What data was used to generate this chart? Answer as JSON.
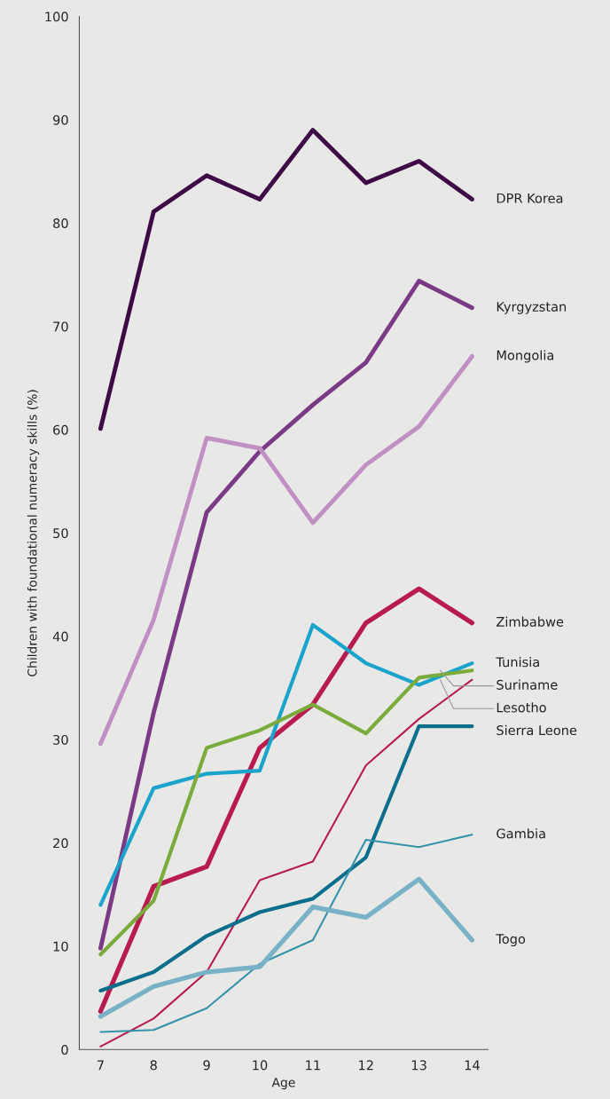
{
  "chart_data": {
    "type": "line",
    "xlabel": "Age",
    "ylabel": "Children with foundational numeracy skills (%)",
    "x": [
      7,
      8,
      9,
      10,
      11,
      12,
      13,
      14
    ],
    "xlim": [
      6.6,
      14.3
    ],
    "xticks": [
      7,
      8,
      9,
      10,
      11,
      12,
      13,
      14
    ],
    "ylim": [
      0,
      100
    ],
    "yticks": [
      0,
      10,
      20,
      30,
      40,
      50,
      60,
      70,
      80,
      90,
      100
    ],
    "grid": false,
    "legend": false,
    "marker": "none",
    "line_style": "solid",
    "series": [
      {
        "name": "DPR Korea",
        "color": "#3d0a45",
        "values": [
          60.1,
          81.1,
          84.6,
          82.3,
          89.0,
          83.9,
          86.0,
          82.3
        ]
      },
      {
        "name": "Kyrgyzstan",
        "color": "#7b3a85",
        "values": [
          9.8,
          32.6,
          52.0,
          57.9,
          62.4,
          66.5,
          74.4,
          71.8
        ]
      },
      {
        "name": "Mongolia",
        "color": "#c08fc4",
        "values": [
          29.6,
          41.6,
          59.2,
          58.2,
          51.0,
          56.6,
          60.3,
          67.1
        ]
      },
      {
        "name": "Zimbabwe",
        "color": "#b81c4f",
        "values": [
          3.7,
          15.8,
          17.7,
          29.2,
          33.4,
          41.3,
          44.6,
          41.3
        ]
      },
      {
        "name": "Tunisia",
        "color": "#1aa3cc",
        "values": [
          14.0,
          25.3,
          26.7,
          27.0,
          41.1,
          37.4,
          35.3,
          37.4
        ]
      },
      {
        "name": "Suriname",
        "color": "#7aab3c",
        "values": [
          9.2,
          14.4,
          29.2,
          30.9,
          33.4,
          30.6,
          36.0,
          36.7
        ]
      },
      {
        "name": "Lesotho",
        "color": "#b81c4f",
        "values": [
          0.3,
          3.0,
          7.5,
          16.4,
          18.2,
          27.5,
          32.0,
          35.8
        ]
      },
      {
        "name": "Sierra Leone",
        "color": "#0b6e8c",
        "values": [
          5.7,
          7.5,
          11.0,
          13.3,
          14.6,
          18.6,
          31.3,
          31.3
        ]
      },
      {
        "name": "Gambia",
        "color": "#3592ab",
        "values": [
          1.7,
          1.9,
          4.0,
          8.3,
          10.6,
          20.3,
          19.6,
          20.8
        ]
      },
      {
        "name": "Togo",
        "color": "#79b2c6",
        "values": [
          3.2,
          6.1,
          7.5,
          8.0,
          13.8,
          12.8,
          16.5,
          10.6
        ]
      }
    ]
  }
}
